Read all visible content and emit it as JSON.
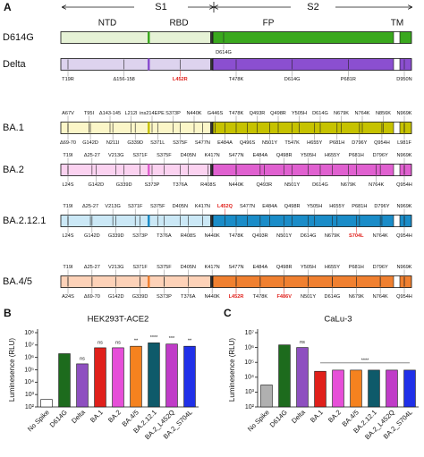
{
  "panel_a": {
    "label": "A",
    "regions": [
      "S1",
      "S2"
    ],
    "domains": [
      "NTD",
      "RBD",
      "FP",
      "TM"
    ],
    "variants": [
      {
        "name": "D614G",
        "light": "#e6f2d6",
        "dark": "#3aa81e",
        "top": [],
        "bottom": [
          "D614G"
        ]
      },
      {
        "name": "Delta",
        "light": "#ddd3ee",
        "dark": "#8b4fd0",
        "top": [],
        "bottom": [
          "T19R",
          "Δ156-158",
          {
            "text": "L452R",
            "color": "#e0201b"
          },
          "T478K",
          "D614G",
          "P681R",
          "D950N"
        ]
      },
      {
        "name": "BA.1",
        "light": "#fbf6c8",
        "dark": "#c6c200",
        "top": [
          "A67V",
          "T95I",
          "Δ143-145",
          "L212I",
          "ins214EPE",
          "S373P",
          "N440K",
          "G446S",
          "T478K",
          "Q493R",
          "Q498R",
          "Y505H",
          "D614G",
          "N679K",
          "N764K",
          "N856K",
          "N969K"
        ],
        "bottom": [
          "Δ69-70",
          "G142D",
          "N211I",
          "G339D",
          "S371L",
          "S375F",
          "S477N",
          "E484A",
          "Q496S",
          "N501Y",
          "T547K",
          "H655Y",
          "P681H",
          "D796Y",
          "Q954H",
          "L981F"
        ]
      },
      {
        "name": "BA.2",
        "light": "#fbd2f0",
        "dark": "#e060d0",
        "top": [
          "T19I",
          "Δ25-27",
          "V213G",
          "S371F",
          "S375F",
          "D405N",
          "K417N",
          "S477N",
          "E484A",
          "Q498R",
          "Y505H",
          "H655Y",
          "P681H",
          "D796Y",
          "N969K"
        ],
        "bottom": [
          "L24S",
          "G142D",
          "G339D",
          "S373P",
          "T376A",
          "R408S",
          "N440K",
          "Q493R",
          "N501Y",
          "D614G",
          "N679K",
          "N764K",
          "Q954H"
        ]
      },
      {
        "name": "BA.2.12.1",
        "light": "#cbe8f6",
        "dark": "#1a8cc8",
        "top": [
          "T19I",
          "Δ25-27",
          "V213G",
          "S371F",
          "S375F",
          "D405N",
          "K417N",
          {
            "text": "L452Q",
            "color": "#e0201b"
          },
          "S477N",
          "E484A",
          "Q498R",
          "Y505H",
          "H655Y",
          "P681H",
          "D796Y",
          "N969K"
        ],
        "bottom": [
          "L24S",
          "G142D",
          "G339D",
          "S373P",
          "T376A",
          "R408S",
          "N440K",
          "T478K",
          "Q493R",
          "N501Y",
          "D614G",
          "N679K",
          {
            "text": "S704L",
            "color": "#e0201b"
          },
          "N764K",
          "Q954H"
        ]
      },
      {
        "name": "BA.4/5",
        "light": "#fdd2b8",
        "dark": "#f08030",
        "top": [
          "T19I",
          "Δ25-27",
          "V213G",
          "S371F",
          "S375F",
          "D405N",
          "K417N",
          "S477N",
          "E484A",
          "Q498R",
          "Y505H",
          "H655Y",
          "P681H",
          "D796Y",
          "N969K"
        ],
        "bottom": [
          "A24S",
          "Δ69-70",
          "G142D",
          "G339D",
          "S373P",
          "T376A",
          "N440K",
          {
            "text": "L452R",
            "color": "#e0201b"
          },
          "T478K",
          {
            "text": "F486V",
            "color": "#e0201b"
          },
          "N501Y",
          "D614G",
          "N679K",
          "N764K",
          "Q954H"
        ]
      }
    ]
  },
  "chart_data": [
    {
      "type": "bar",
      "panel": "B",
      "title": "HEK293T-ACE2",
      "y_label": "Luminesence (RLU)",
      "log_scale": true,
      "categories": [
        "No Spike",
        "D614G",
        "Delta",
        "BA.1",
        "BA.2",
        "BA.4/5",
        "BA.2.12.1",
        "BA.2_L452Q",
        "BA.2_S704L"
      ],
      "values": [
        400,
        2000000,
        300000,
        6000000,
        6000000,
        8000000,
        15000000,
        12000000,
        8000000
      ],
      "colors": [
        "#ffffff",
        "#1d6b1d",
        "#8e4fc0",
        "#e0201b",
        "#e64fd8",
        "#f5821f",
        "#0e5a6a",
        "#c03cc8",
        "#2030e8"
      ],
      "ylim": [
        100,
        100000000
      ],
      "yticks": [
        {
          "value": 100,
          "label": "10²"
        },
        {
          "value": 1000,
          "label": "10³"
        },
        {
          "value": 10000,
          "label": "10⁴"
        },
        {
          "value": 100000,
          "label": "10⁵"
        },
        {
          "value": 1000000,
          "label": "10⁶"
        },
        {
          "value": 10000000,
          "label": "10⁷"
        },
        {
          "value": 100000000,
          "label": "10⁸"
        }
      ],
      "annotations": [
        {
          "category": "Delta",
          "text": "ns"
        },
        {
          "category": "BA.1",
          "text": "ns"
        },
        {
          "category": "BA.2",
          "text": "ns"
        },
        {
          "category": "BA.4/5",
          "text": "**"
        },
        {
          "category": "BA.2.12.1",
          "text": "****"
        },
        {
          "category": "BA.2_L452Q",
          "text": "***"
        },
        {
          "category": "BA.2_S704L",
          "text": "**"
        }
      ]
    },
    {
      "type": "bar",
      "panel": "C",
      "title": "CaLu-3",
      "y_label": "Luminesence (RLU)",
      "log_scale": true,
      "categories": [
        "No Spike",
        "D614G",
        "Delta",
        "BA.1",
        "BA.2",
        "BA.4/5",
        "BA.2.12.1",
        "BA.2_L452Q",
        "BA.2_S704L"
      ],
      "values": [
        3000,
        1500000,
        1000000,
        25000,
        30000,
        30000,
        30000,
        30000,
        30000
      ],
      "colors": [
        "#b0b0b0",
        "#1d6b1d",
        "#8e4fc0",
        "#e0201b",
        "#e64fd8",
        "#f5821f",
        "#0e5a6a",
        "#c03cc8",
        "#2030e8"
      ],
      "ylim": [
        100,
        10000000
      ],
      "yticks": [
        {
          "value": 100,
          "label": "10²"
        },
        {
          "value": 1000,
          "label": "10³"
        },
        {
          "value": 10000,
          "label": "10⁴"
        },
        {
          "value": 100000,
          "label": "10⁵"
        },
        {
          "value": 1000000,
          "label": "10⁶"
        },
        {
          "value": 10000000,
          "label": "10⁷"
        }
      ],
      "annotations": [
        {
          "category": "Delta",
          "text": "ns"
        },
        {
          "from": "BA.1",
          "to": "BA.2_S704L",
          "text": "****"
        }
      ]
    }
  ]
}
